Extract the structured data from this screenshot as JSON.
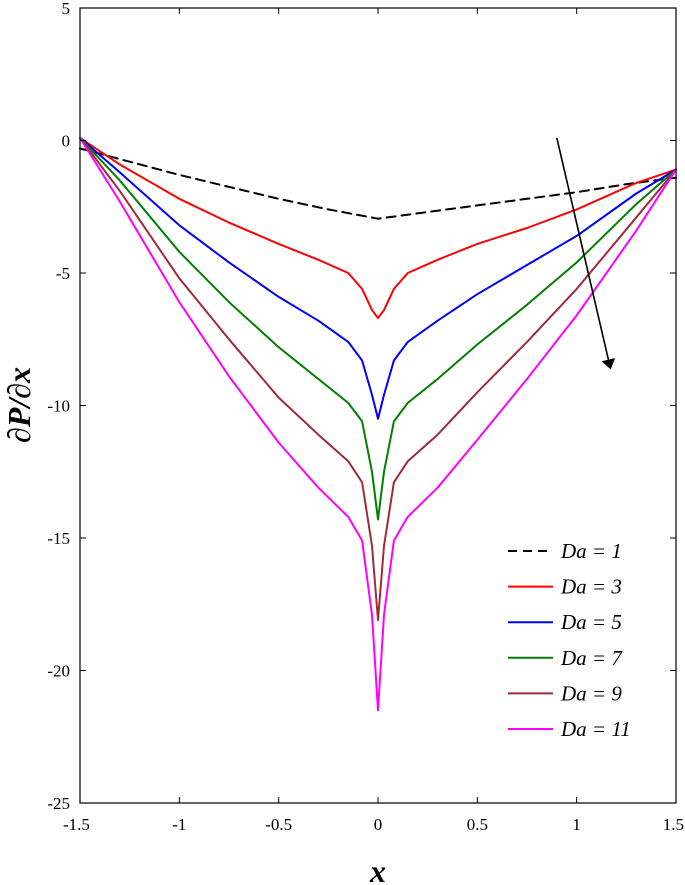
{
  "chart_data": {
    "type": "line",
    "title": "",
    "xlabel": "x",
    "ylabel": "∂P/∂x",
    "xlim": [
      -1.5,
      1.5
    ],
    "ylim": [
      -25,
      5
    ],
    "x_ticks": [
      -1.5,
      -1,
      -0.5,
      0,
      0.5,
      1,
      1.5
    ],
    "x_tick_labels": [
      "-1.5",
      "-1",
      "-0.5",
      "0",
      "0.5",
      "1",
      "1.5"
    ],
    "y_ticks": [
      5,
      0,
      -5,
      -10,
      -15,
      -20,
      -25
    ],
    "y_tick_labels": [
      "5",
      "0",
      "-5",
      "-10",
      "-15",
      "-20",
      "-25"
    ],
    "grid": false,
    "legend_position": "bottom-right",
    "annotation": "arrow indicating increasing Da",
    "series": [
      {
        "name": "Da = 1",
        "color": "#000000",
        "dash": true,
        "x": [
          -1.5,
          -1.25,
          -1.0,
          -0.75,
          -0.5,
          -0.25,
          0.0,
          0.25,
          0.5,
          0.75,
          1.0,
          1.25,
          1.5
        ],
        "y": [
          -0.3,
          -0.8,
          -1.3,
          -1.75,
          -2.2,
          -2.6,
          -2.95,
          -2.7,
          -2.45,
          -2.2,
          -1.95,
          -1.65,
          -1.4
        ]
      },
      {
        "name": "Da = 3",
        "color": "#ff0000",
        "dash": false,
        "x": [
          -1.5,
          -1.3,
          -1.0,
          -0.75,
          -0.5,
          -0.3,
          -0.15,
          -0.08,
          -0.03,
          0.0,
          0.03,
          0.08,
          0.15,
          0.3,
          0.5,
          0.75,
          1.0,
          1.3,
          1.5
        ],
        "y": [
          0.1,
          -0.9,
          -2.2,
          -3.1,
          -3.9,
          -4.5,
          -5.0,
          -5.6,
          -6.4,
          -6.7,
          -6.4,
          -5.6,
          -5.0,
          -4.5,
          -3.9,
          -3.3,
          -2.6,
          -1.6,
          -1.1
        ]
      },
      {
        "name": "Da = 5",
        "color": "#0000ff",
        "dash": false,
        "x": [
          -1.5,
          -1.3,
          -1.0,
          -0.75,
          -0.5,
          -0.3,
          -0.15,
          -0.08,
          -0.03,
          0.0,
          0.03,
          0.08,
          0.15,
          0.3,
          0.5,
          0.75,
          1.0,
          1.3,
          1.5
        ],
        "y": [
          0.1,
          -1.2,
          -3.2,
          -4.6,
          -5.9,
          -6.8,
          -7.6,
          -8.3,
          -9.6,
          -10.5,
          -9.6,
          -8.3,
          -7.6,
          -6.8,
          -5.8,
          -4.7,
          -3.6,
          -2.0,
          -1.1
        ]
      },
      {
        "name": "Da = 7",
        "color": "#008000",
        "dash": false,
        "x": [
          -1.5,
          -1.3,
          -1.0,
          -0.75,
          -0.5,
          -0.3,
          -0.15,
          -0.08,
          -0.03,
          0.0,
          0.03,
          0.08,
          0.15,
          0.3,
          0.5,
          0.75,
          1.0,
          1.3,
          1.5
        ],
        "y": [
          0.1,
          -1.5,
          -4.2,
          -6.1,
          -7.8,
          -9.0,
          -9.9,
          -10.6,
          -12.5,
          -14.3,
          -12.5,
          -10.6,
          -9.9,
          -9.0,
          -7.7,
          -6.2,
          -4.6,
          -2.4,
          -1.1
        ]
      },
      {
        "name": "Da = 9",
        "color": "#a0293a",
        "dash": false,
        "x": [
          -1.5,
          -1.3,
          -1.0,
          -0.75,
          -0.5,
          -0.3,
          -0.15,
          -0.08,
          -0.03,
          0.0,
          0.03,
          0.08,
          0.15,
          0.3,
          0.5,
          0.75,
          1.0,
          1.3,
          1.5
        ],
        "y": [
          0.1,
          -1.9,
          -5.2,
          -7.5,
          -9.7,
          -11.1,
          -12.1,
          -12.9,
          -15.3,
          -18.1,
          -15.3,
          -12.9,
          -12.1,
          -11.1,
          -9.5,
          -7.6,
          -5.6,
          -2.9,
          -1.1
        ]
      },
      {
        "name": "Da = 11",
        "color": "#ff00ff",
        "dash": false,
        "x": [
          -1.5,
          -1.3,
          -1.0,
          -0.75,
          -0.5,
          -0.3,
          -0.15,
          -0.08,
          -0.03,
          0.0,
          0.03,
          0.08,
          0.15,
          0.3,
          0.5,
          0.75,
          1.0,
          1.3,
          1.5
        ],
        "y": [
          0.1,
          -2.3,
          -6.1,
          -8.9,
          -11.4,
          -13.1,
          -14.2,
          -15.1,
          -17.9,
          -21.5,
          -17.9,
          -15.1,
          -14.2,
          -13.1,
          -11.3,
          -9.0,
          -6.6,
          -3.4,
          -1.1
        ]
      }
    ],
    "arrow": {
      "from": [
        0.9,
        0.1
      ],
      "to": [
        1.17,
        -8.6
      ]
    }
  }
}
